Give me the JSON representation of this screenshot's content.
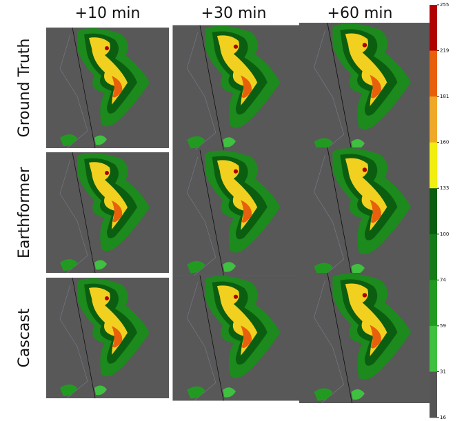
{
  "columns": [
    "+10 min",
    "+30 min",
    "+60 min"
  ],
  "rows": [
    "Ground Truth",
    "Earthformer",
    "Cascast"
  ],
  "colorbar": {
    "ticks": [
      255,
      219,
      181,
      160,
      133,
      100,
      74,
      59,
      31,
      16
    ],
    "colors": [
      "#b00000",
      "#e8600c",
      "#f0a828",
      "#f2ee10",
      "#0b5e10",
      "#167a18",
      "#229a22",
      "#40c040",
      "#555555"
    ]
  }
}
